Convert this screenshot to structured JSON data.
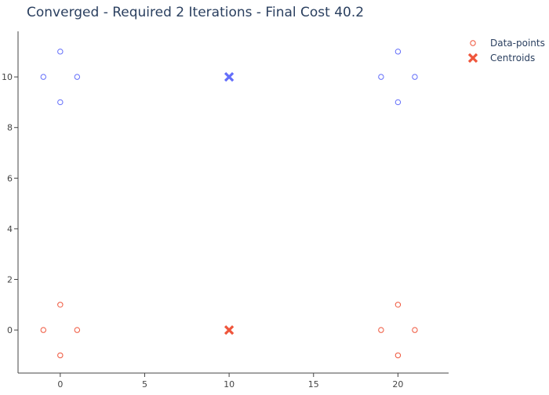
{
  "chart_data": {
    "type": "scatter",
    "title": "Converged - Required 2 Iterations - Final Cost 40.2",
    "xlabel": "",
    "ylabel": "",
    "xlim": [
      -2.5,
      23
    ],
    "ylim": [
      -1.7,
      11.8
    ],
    "x_ticks": [
      0,
      5,
      10,
      15,
      20
    ],
    "y_ticks": [
      0,
      2,
      4,
      6,
      8,
      10
    ],
    "grid": false,
    "legend_position": "top-right",
    "colors": {
      "cluster_a": "#ef553b",
      "cluster_b": "#636efa",
      "axis": "#444444",
      "title": "#2a3f5f"
    },
    "series": [
      {
        "name": "Data-points",
        "marker": "open-circle",
        "points": [
          {
            "x": -1,
            "y": 0,
            "cluster": "cluster_a"
          },
          {
            "x": 0,
            "y": 1,
            "cluster": "cluster_a"
          },
          {
            "x": 1,
            "y": 0,
            "cluster": "cluster_a"
          },
          {
            "x": 0,
            "y": -1,
            "cluster": "cluster_a"
          },
          {
            "x": 19,
            "y": 0,
            "cluster": "cluster_a"
          },
          {
            "x": 20,
            "y": 1,
            "cluster": "cluster_a"
          },
          {
            "x": 21,
            "y": 0,
            "cluster": "cluster_a"
          },
          {
            "x": 20,
            "y": -1,
            "cluster": "cluster_a"
          },
          {
            "x": -1,
            "y": 10,
            "cluster": "cluster_b"
          },
          {
            "x": 0,
            "y": 11,
            "cluster": "cluster_b"
          },
          {
            "x": 1,
            "y": 10,
            "cluster": "cluster_b"
          },
          {
            "x": 0,
            "y": 9,
            "cluster": "cluster_b"
          },
          {
            "x": 19,
            "y": 10,
            "cluster": "cluster_b"
          },
          {
            "x": 20,
            "y": 11,
            "cluster": "cluster_b"
          },
          {
            "x": 21,
            "y": 10,
            "cluster": "cluster_b"
          },
          {
            "x": 20,
            "y": 9,
            "cluster": "cluster_b"
          }
        ]
      },
      {
        "name": "Centroids",
        "marker": "x",
        "points": [
          {
            "x": 10,
            "y": 0,
            "cluster": "cluster_a"
          },
          {
            "x": 10,
            "y": 10,
            "cluster": "cluster_b"
          }
        ]
      }
    ]
  }
}
